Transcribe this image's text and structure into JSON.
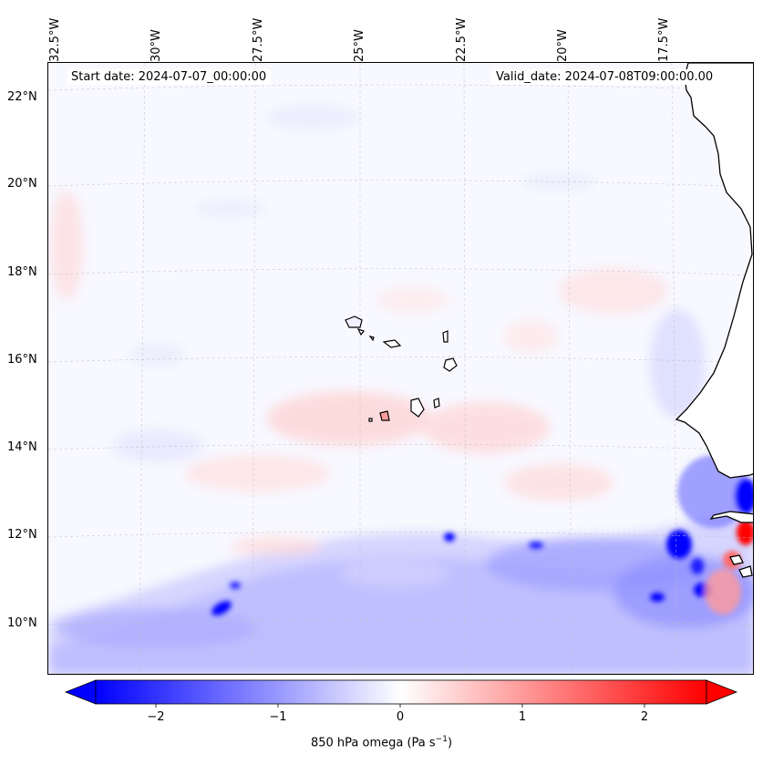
{
  "header": {
    "start_date": "Start date: 2024-07-07_00:00:00",
    "valid_date": "Valid_date: 2024-07-08T09:00:00.00"
  },
  "axes": {
    "lon_ticks": [
      "32.5°W",
      "30°W",
      "27.5°W",
      "25°W",
      "22.5°W",
      "20°W",
      "17.5°W"
    ],
    "lat_ticks": [
      "22°N",
      "20°N",
      "18°N",
      "16°N",
      "14°N",
      "12°N",
      "10°N"
    ],
    "grid": true
  },
  "colorbar": {
    "label_main": "850 hPa omega (Pa s",
    "label_exp": "−1",
    "label_close": ")",
    "ticks": [
      "−2",
      "−1",
      "0",
      "1",
      "2"
    ],
    "range": [
      -2.7,
      2.7
    ],
    "cmap": "bwr",
    "extend": "both",
    "color_min": "#0000ff",
    "color_mid": "#ffffff",
    "color_max": "#ff0000"
  },
  "map": {
    "region": "Eastern tropical North Atlantic, Cape Verde Islands and West African coast",
    "land_color": "#ffffff",
    "coastline_color": "#000000"
  }
}
